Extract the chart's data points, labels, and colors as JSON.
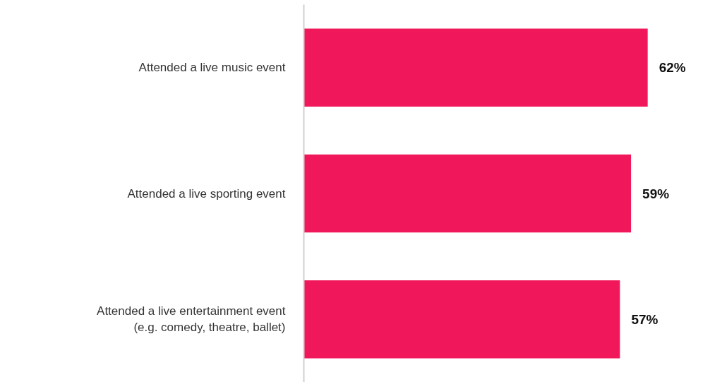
{
  "chart_data": {
    "type": "bar",
    "orientation": "horizontal",
    "categories": [
      "Attended a live music event",
      "Attended a live sporting event",
      "Attended a live entertainment event\n(e.g. comedy, theatre, ballet)"
    ],
    "values": [
      62,
      59,
      57
    ],
    "value_labels": [
      "62%",
      "59%",
      "57%"
    ],
    "color": "#f0185a",
    "tick_labels": "y",
    "grid": false
  }
}
